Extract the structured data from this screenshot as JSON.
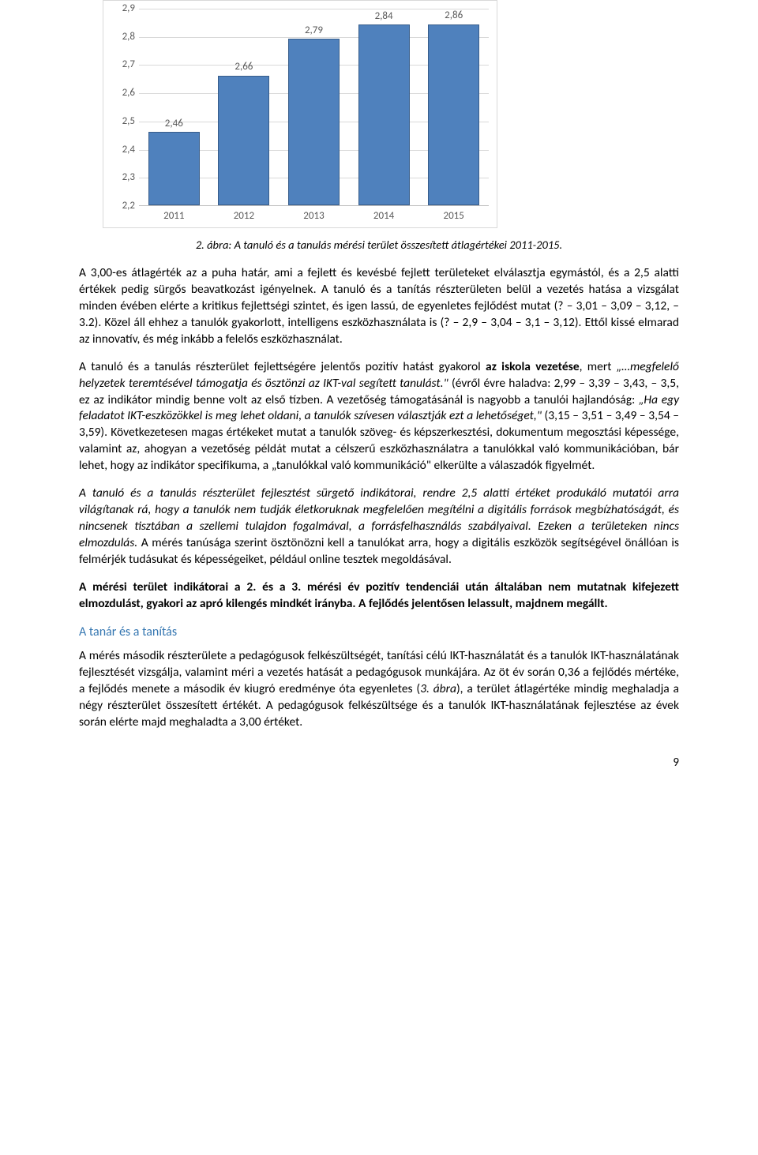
{
  "chart": {
    "categories": [
      "2011",
      "2012",
      "2013",
      "2014",
      "2015"
    ],
    "values": [
      2.46,
      2.66,
      2.79,
      2.84,
      2.86
    ],
    "value_labels": [
      "2,46",
      "2,66",
      "2,79",
      "2,84",
      "2,86"
    ],
    "bar_color": "#4f81bd",
    "bar_border": "#385d8a",
    "ymin": 2.2,
    "ymax": 2.9,
    "yticks": [
      2.2,
      2.3,
      2.4,
      2.5,
      2.6,
      2.7,
      2.8,
      2.9
    ],
    "ytick_labels": [
      "2,2",
      "2,3",
      "2,4",
      "2,5",
      "2,6",
      "2,7",
      "2,8",
      "2,9"
    ],
    "grid_color": "#d9d9d9",
    "axis_text_color": "#595959"
  },
  "caption": "2. ábra: A tanuló és a tanulás mérési terület összesített átlagértékei 2011-2015.",
  "p1": "A 3,00-es átlagérték az a puha határ, ami a fejlett és kevésbé fejlett területeket elválasztja egymástól, és a 2,5 alatti értékek pedig sürgős beavatkozást igényelnek. A tanuló és a tanítás részterületen belül a vezetés hatása a vizsgálat minden évében elérte a kritikus fejlettségi szintet, és igen lassú, de egyenletes fejlődést mutat (? – 3,01 – 3,09 – 3,12, – 3.2). Közel áll ehhez a tanulók gyakorlott, intelligens eszközhasználata is (? – 2,9 – 3,04 – 3,1 – 3,12). Ettől kissé elmarad az innovatív, és még inkább a felelős eszközhasználat.",
  "p2a": "A tanuló és a tanulás részterület fejlettségére jelentős pozitív hatást gyakorol ",
  "p2b_bold": "az iskola vezetése",
  "p2c": ", mert ",
  "p2d_ital": "„…megfelelő helyzetek teremtésével támogatja és ösztönzi az IKT-val segített tanulást.\"",
  "p2e": " (évről évre haladva: 2,99 – 3,39 – 3,43, – 3,5, ez az indikátor mindig benne volt az első tízben. A vezetőség támogatásánál is nagyobb a tanulói hajlandóság: ",
  "p2f_ital": "„Ha egy feladatot IKT-eszközökkel is meg lehet oldani, a tanulók szívesen választják ezt a lehetőséget,\"",
  "p2g": " (3,15 – 3,51 – 3,49 – 3,54 – 3,59). Következetesen magas értékeket mutat a tanulók szöveg- és képszerkesztési, dokumentum megosztási képessége, valamint az, ahogyan a vezetőség példát mutat a célszerű eszközhasználatra a tanulókkal való kommunikációban, bár lehet, hogy az indikátor specifikuma, a „tanulókkal való kommunikáció\" elkerülte a válaszadók figyelmét.",
  "p3a_ital": "A tanuló és a tanulás részterület fejlesztést sürgető indikátorai, rendre 2,5 alatti értéket produkáló mutatói arra világítanak rá, hogy a tanulók nem tudják életkoruknak megfelelően megítélni a digitális források megbízhatóságát, és nincsenek tisztában a szellemi tulajdon fogalmával, a forrásfelhasználás szabályaival. Ezeken a területeken nincs elmozdulás.",
  "p3b": " A mérés tanúsága szerint ösztönözni kell a tanulókat arra, hogy a digitális eszközök segítségével önállóan is felmérjék tudásukat és képességeiket, például online tesztek megoldásával.",
  "p4": "A mérési terület indikátorai a 2. és a 3. mérési év pozitív tendenciái után általában nem mutatnak kifejezett elmozdulást, gyakori az apró kilengés mindkét irányba. A fejlődés jelentősen lelassult, majdnem megállt.",
  "section_head": "A tanár és a tanítás",
  "p5a": "A mérés második részterülete a pedagógusok felkészültségét, tanítási célú IKT-használatát és a tanulók IKT-használatának fejlesztését vizsgálja, valamint méri a vezetés hatását a pedagógusok munkájára. Az öt év során 0,36 a fejlődés mértéke, a fejlődés menete a második év kiugró eredménye óta egyenletes (",
  "p5b_ital": "3. ábra",
  "p5c": "), a terület átlagértéke mindig meghaladja a négy részterület összesített értékét. A pedagógusok felkészültsége és a tanulók IKT-használatának fejlesztése az évek során elérte majd meghaladta a 3,00 értéket.",
  "pagenum": "9"
}
